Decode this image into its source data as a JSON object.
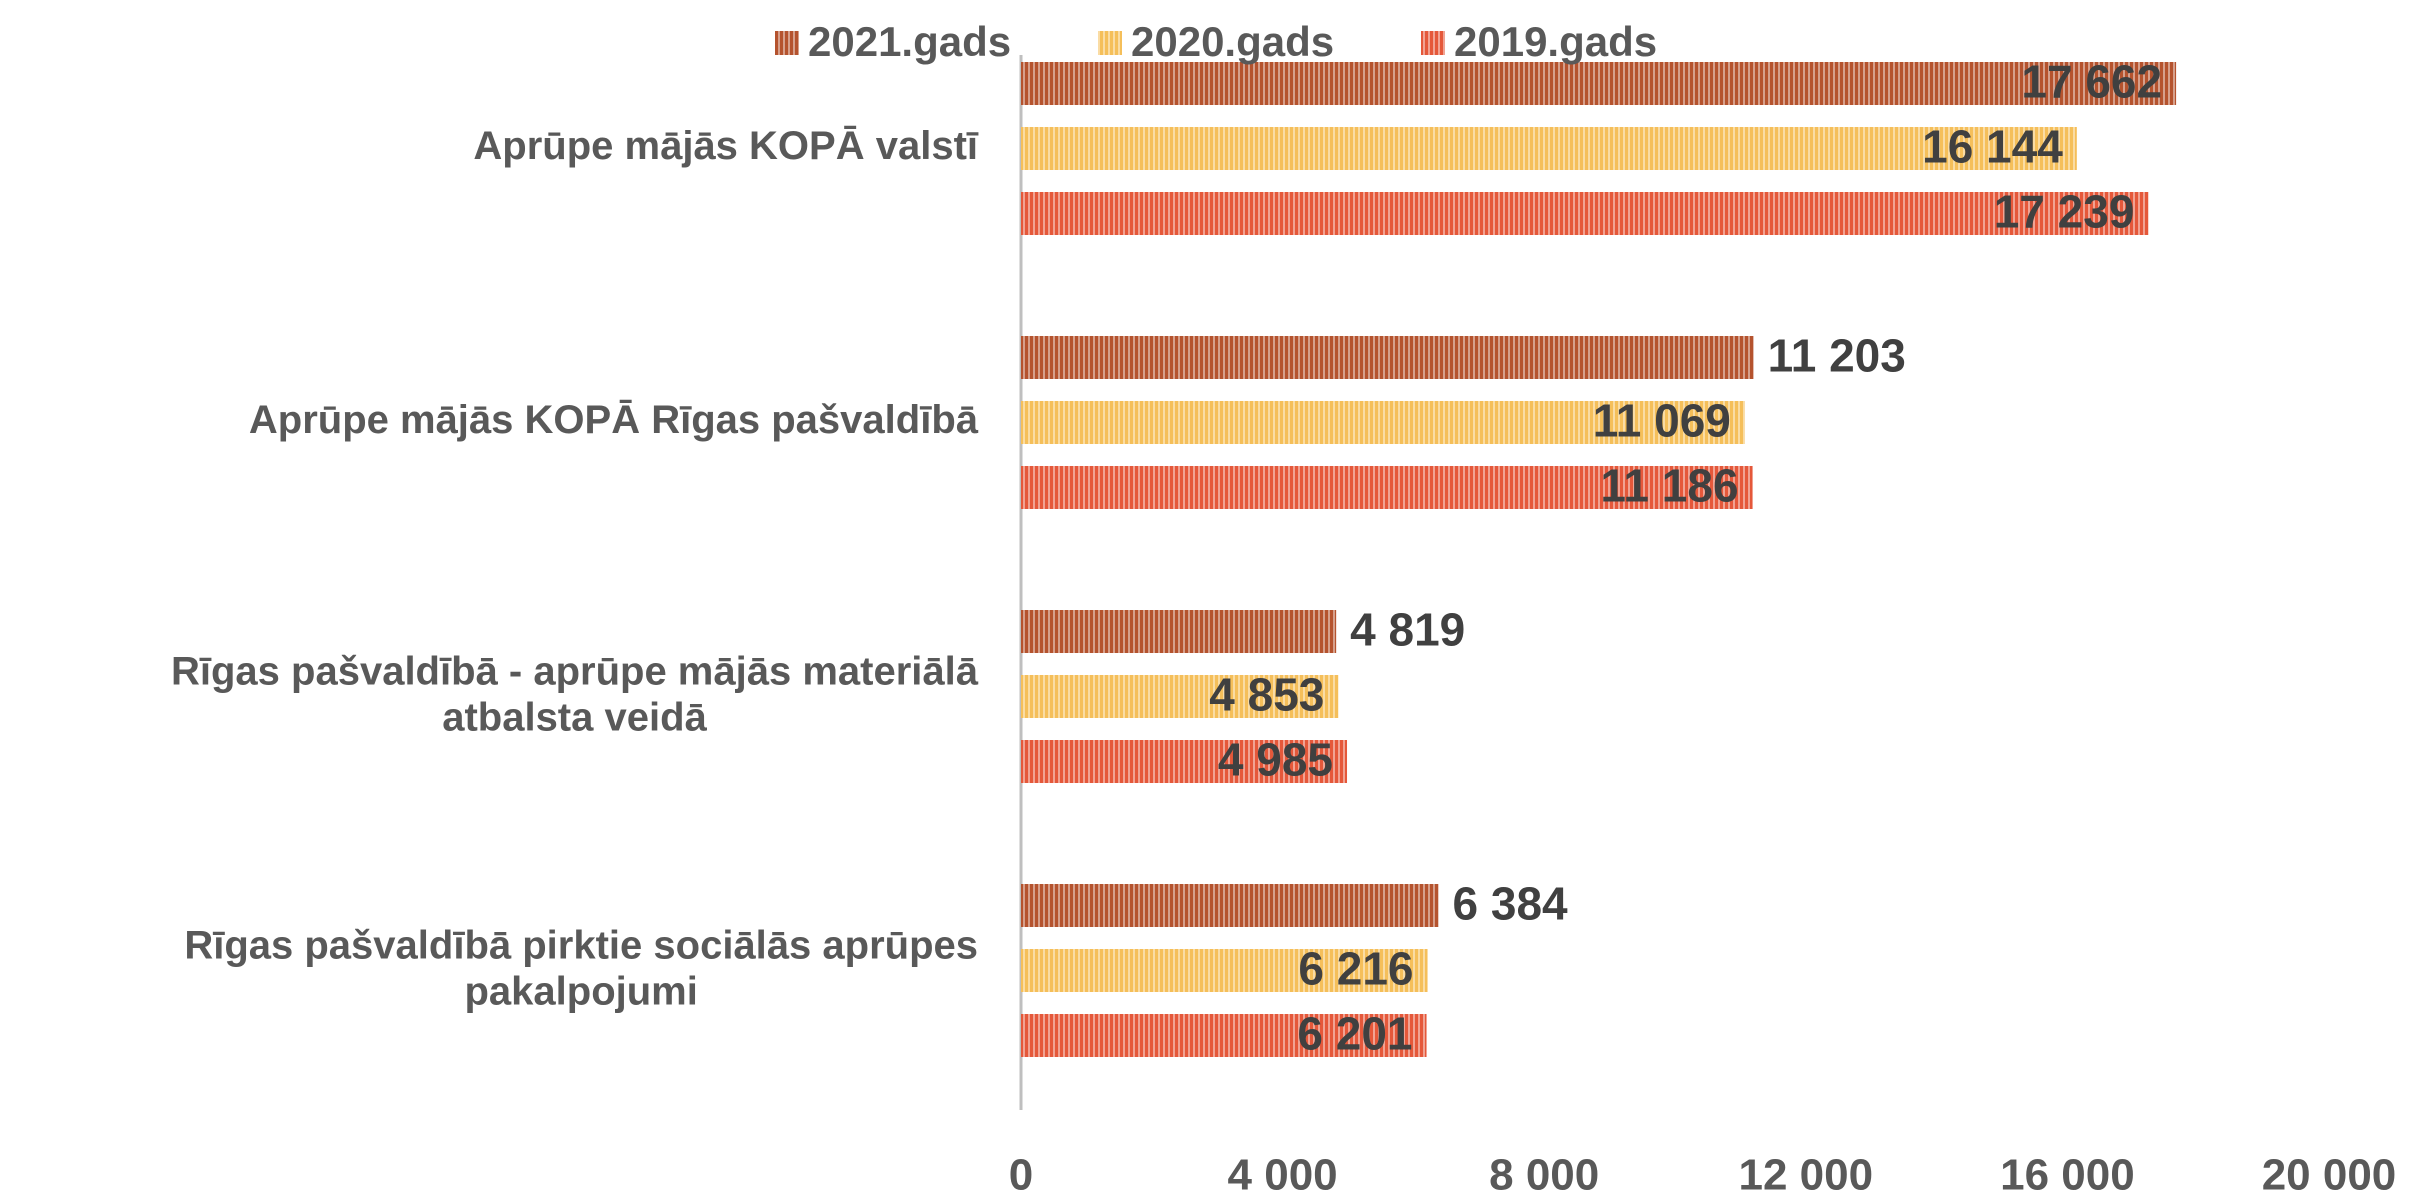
{
  "chart_data": {
    "type": "hbar",
    "categories": [
      "Aprūpe mājās KOPĀ valstī",
      "Aprūpe mājās KOPĀ Rīgas pašvaldībā",
      "Rīgas pašvaldībā - aprūpe mājās materiālā atbalsta veidā",
      "Rīgas pašvaldībā pirktie sociālās aprūpes pakalpojumi"
    ],
    "series": [
      {
        "name": "2021.gads",
        "color": "#b5532e",
        "values": [
          17662,
          11203,
          4819,
          6384
        ],
        "value_labels": [
          "17 662",
          "11 203",
          "4 819",
          "6 384"
        ]
      },
      {
        "name": "2020.gads",
        "color": "#f5bf5a",
        "values": [
          16144,
          11069,
          4853,
          6216
        ],
        "value_labels": [
          "16 144",
          "11 069",
          "4 853",
          "6 216"
        ]
      },
      {
        "name": "2019.gads",
        "color": "#e5583a",
        "values": [
          17239,
          11186,
          4985,
          6201
        ],
        "value_labels": [
          "17 239",
          "11 186",
          "4 985",
          "6 201"
        ]
      }
    ],
    "xlim": [
      0,
      20000
    ],
    "xticks": [
      0,
      {
        "value": 4000,
        "label": "4 000"
      },
      {
        "value": 8000,
        "label": "8 000"
      },
      {
        "value": 12000,
        "label": "12 000"
      },
      {
        "value": 16000,
        "label": "16 000"
      },
      {
        "value": 20000,
        "label": "20 000"
      }
    ],
    "legend": "top",
    "pattern": "vertical-stripes"
  }
}
